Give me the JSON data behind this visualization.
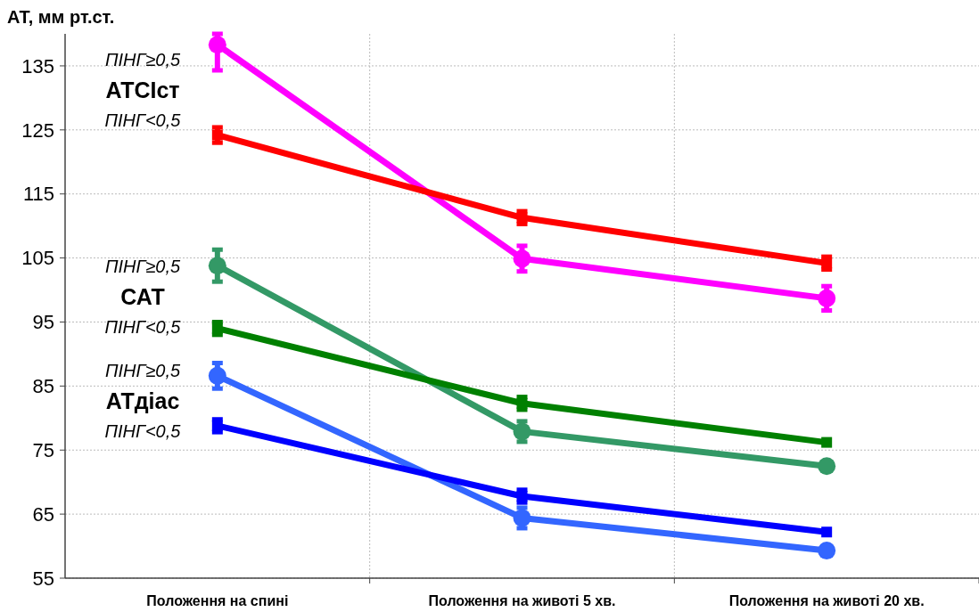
{
  "chart_data": {
    "type": "line",
    "ylabel": "АТ, мм рт.ст.",
    "categories": [
      "Положення на спині",
      "Положення на животі 5 хв.",
      "Положення на животі 20 хв."
    ],
    "ylim": [
      55,
      140
    ],
    "yticks": [
      55,
      65,
      75,
      85,
      95,
      105,
      115,
      125,
      135
    ],
    "grid": true,
    "annotations": [
      "АТСІст",
      "САТ",
      "АТдіас"
    ],
    "series": [
      {
        "name": "ПІНГ≥0,5",
        "color": "#ff00ff",
        "marker": "circle",
        "values": [
          138.3,
          104.9,
          98.7
        ],
        "errors": [
          [
            134.3,
            140
          ],
          [
            102.9,
            106.9
          ],
          [
            96.8,
            100.6
          ]
        ]
      },
      {
        "name": "ПІНГ<0,5",
        "color": "#ff0000",
        "marker": "square",
        "values": [
          124.2,
          111.3,
          104.2
        ],
        "errors": [
          [
            123,
            125.4
          ],
          [
            110.3,
            112.3
          ],
          [
            103.2,
            105.2
          ]
        ]
      },
      {
        "name": "ПІНГ≥0,5",
        "color": "#339966",
        "marker": "circle",
        "values": [
          103.8,
          77.9,
          72.5
        ],
        "errors": [
          [
            101.3,
            106.3
          ],
          [
            76.3,
            79.5
          ],
          null
        ]
      },
      {
        "name": "ПІНГ<0,5",
        "color": "#008000",
        "marker": "square",
        "values": [
          94.0,
          82.3,
          76.2
        ],
        "errors": [
          [
            93.0,
            95.0
          ],
          [
            81.3,
            83.3
          ],
          null
        ]
      },
      {
        "name": "ПІНГ≥0,5",
        "color": "#3366ff",
        "marker": "circle",
        "values": [
          86.6,
          64.4,
          59.3
        ],
        "errors": [
          [
            84.6,
            88.6
          ],
          [
            62.8,
            66.0
          ],
          null
        ]
      },
      {
        "name": "ПІНГ<0,5",
        "color": "#0000ff",
        "marker": "square",
        "values": [
          78.8,
          67.8,
          62.2
        ],
        "errors": [
          [
            77.8,
            79.8
          ],
          [
            66.8,
            68.8
          ],
          null
        ]
      }
    ]
  }
}
